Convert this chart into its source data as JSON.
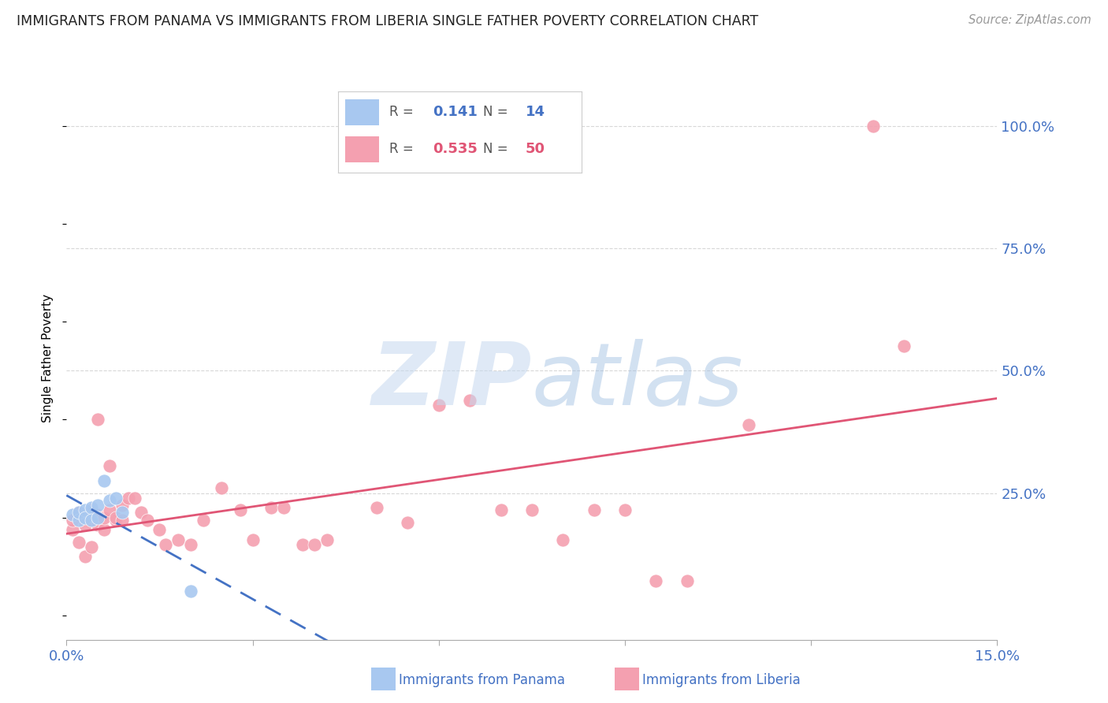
{
  "title": "IMMIGRANTS FROM PANAMA VS IMMIGRANTS FROM LIBERIA SINGLE FATHER POVERTY CORRELATION CHART",
  "source": "Source: ZipAtlas.com",
  "ylabel": "Single Father Poverty",
  "xlim": [
    0.0,
    0.15
  ],
  "ylim": [
    -0.05,
    1.1
  ],
  "ytick_labels": [
    "100.0%",
    "75.0%",
    "50.0%",
    "25.0%"
  ],
  "ytick_values": [
    1.0,
    0.75,
    0.5,
    0.25
  ],
  "legend_r_panama": "0.141",
  "legend_n_panama": "14",
  "legend_r_liberia": "0.535",
  "legend_n_liberia": "50",
  "panama_color": "#a8c8f0",
  "liberia_color": "#f4a0b0",
  "panama_line_color": "#4472c4",
  "liberia_line_color": "#e05575",
  "panama_scatter_x": [
    0.001,
    0.002,
    0.002,
    0.003,
    0.003,
    0.004,
    0.004,
    0.005,
    0.005,
    0.006,
    0.007,
    0.008,
    0.009,
    0.02
  ],
  "panama_scatter_y": [
    0.205,
    0.195,
    0.21,
    0.215,
    0.2,
    0.22,
    0.195,
    0.225,
    0.2,
    0.275,
    0.235,
    0.24,
    0.21,
    0.05
  ],
  "liberia_scatter_x": [
    0.001,
    0.001,
    0.002,
    0.002,
    0.003,
    0.003,
    0.004,
    0.004,
    0.005,
    0.005,
    0.005,
    0.006,
    0.006,
    0.007,
    0.007,
    0.008,
    0.008,
    0.009,
    0.009,
    0.01,
    0.011,
    0.012,
    0.013,
    0.015,
    0.016,
    0.018,
    0.02,
    0.022,
    0.025,
    0.028,
    0.03,
    0.033,
    0.035,
    0.038,
    0.04,
    0.042,
    0.05,
    0.055,
    0.06,
    0.065,
    0.07,
    0.075,
    0.08,
    0.085,
    0.09,
    0.095,
    0.1,
    0.11,
    0.13,
    0.135
  ],
  "liberia_scatter_y": [
    0.175,
    0.195,
    0.15,
    0.21,
    0.12,
    0.185,
    0.14,
    0.215,
    0.185,
    0.205,
    0.4,
    0.175,
    0.2,
    0.215,
    0.305,
    0.195,
    0.2,
    0.225,
    0.195,
    0.24,
    0.24,
    0.21,
    0.195,
    0.175,
    0.145,
    0.155,
    0.145,
    0.195,
    0.26,
    0.215,
    0.155,
    0.22,
    0.22,
    0.145,
    0.145,
    0.155,
    0.22,
    0.19,
    0.43,
    0.44,
    0.215,
    0.215,
    0.155,
    0.215,
    0.215,
    0.07,
    0.07,
    0.39,
    1.0,
    0.55
  ],
  "background_color": "#ffffff",
  "grid_color": "#d8d8d8"
}
